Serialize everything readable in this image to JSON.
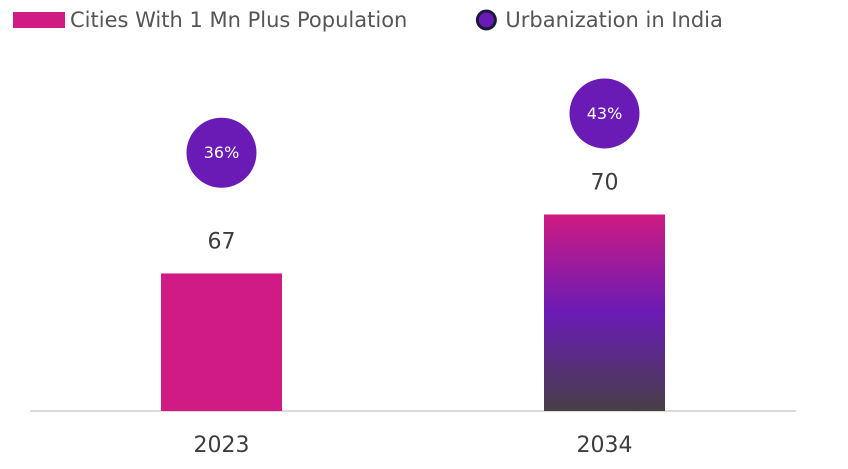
{
  "chart_data": {
    "type": "bar",
    "categories": [
      "2023",
      "2034"
    ],
    "series": [
      {
        "name": "Cities With 1 Mn Plus Population",
        "type": "bar",
        "color": "#cf1b83",
        "values": [
          67,
          70
        ],
        "highlight_gradient": [
          "#cf1b83",
          "#6a1bb5",
          "#473f46"
        ]
      },
      {
        "name": "Urbanization in India",
        "type": "bubble",
        "axis": "y2",
        "color": "#6a1bb5",
        "values": [
          36,
          43
        ],
        "value_labels": [
          "36%",
          "43%"
        ]
      }
    ],
    "ylim": [
      60,
      80
    ],
    "y2lim": [
      -10,
      60
    ],
    "legend": "top"
  }
}
